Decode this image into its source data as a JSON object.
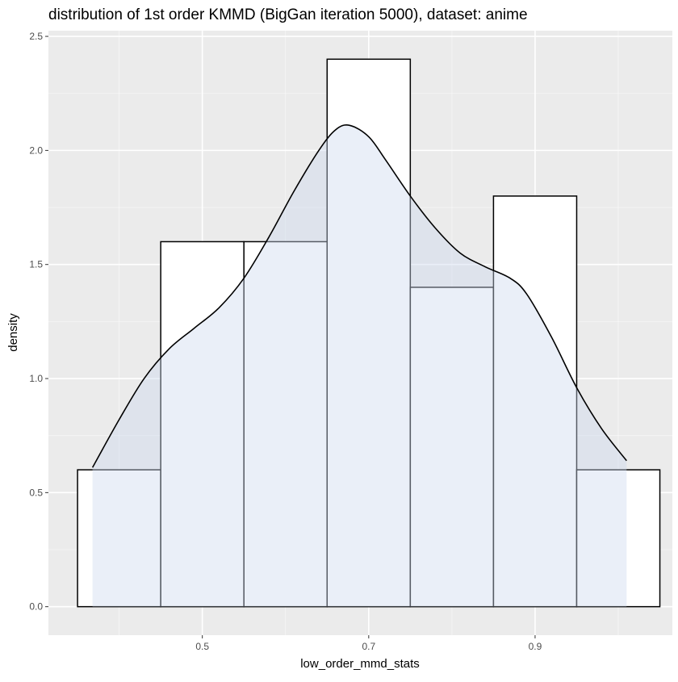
{
  "chart_data": {
    "type": "histogram-density",
    "title": "distribution of 1st order KMMD (BigGan iteration 5000), dataset: anime",
    "xlabel": "low_order_mmd_stats",
    "ylabel": "density",
    "xlim": [
      0.315,
      1.065
    ],
    "ylim": [
      -0.125,
      2.525
    ],
    "x_ticks": [
      0.5,
      0.7,
      0.9
    ],
    "x_tick_labels": [
      "0.5",
      "0.7",
      "0.9"
    ],
    "y_ticks": [
      0.0,
      0.5,
      1.0,
      1.5,
      2.0,
      2.5
    ],
    "y_tick_labels": [
      "0.0",
      "0.5",
      "1.0",
      "1.5",
      "2.0",
      "2.5"
    ],
    "grid": true,
    "histogram": {
      "bin_width": 0.1,
      "bins": [
        {
          "x0": 0.35,
          "x1": 0.45,
          "density": 0.6
        },
        {
          "x0": 0.45,
          "x1": 0.55,
          "density": 1.6
        },
        {
          "x0": 0.55,
          "x1": 0.65,
          "density": 1.6
        },
        {
          "x0": 0.65,
          "x1": 0.75,
          "density": 2.4
        },
        {
          "x0": 0.75,
          "x1": 0.85,
          "density": 1.4
        },
        {
          "x0": 0.85,
          "x1": 0.95,
          "density": 1.8
        },
        {
          "x0": 0.95,
          "x1": 1.05,
          "density": 0.6
        }
      ]
    },
    "density_curve": {
      "x": [
        0.368,
        0.4,
        0.43,
        0.46,
        0.49,
        0.52,
        0.55,
        0.58,
        0.61,
        0.64,
        0.66,
        0.677,
        0.7,
        0.72,
        0.75,
        0.78,
        0.81,
        0.84,
        0.87,
        0.89,
        0.92,
        0.95,
        0.98,
        1.01
      ],
      "y": [
        0.61,
        0.82,
        1.0,
        1.13,
        1.22,
        1.31,
        1.44,
        1.62,
        1.82,
        2.0,
        2.09,
        2.11,
        2.06,
        1.96,
        1.8,
        1.66,
        1.55,
        1.49,
        1.44,
        1.37,
        1.18,
        0.96,
        0.78,
        0.64
      ]
    },
    "colors": {
      "panel_background": "#ebebeb",
      "grid_major": "#ffffff",
      "bar_fill": "#ffffff",
      "bar_stroke": "#000000",
      "density_fill": "#cdd9ee",
      "density_stroke": "#000000",
      "tick_text": "#4d4d4d"
    }
  }
}
